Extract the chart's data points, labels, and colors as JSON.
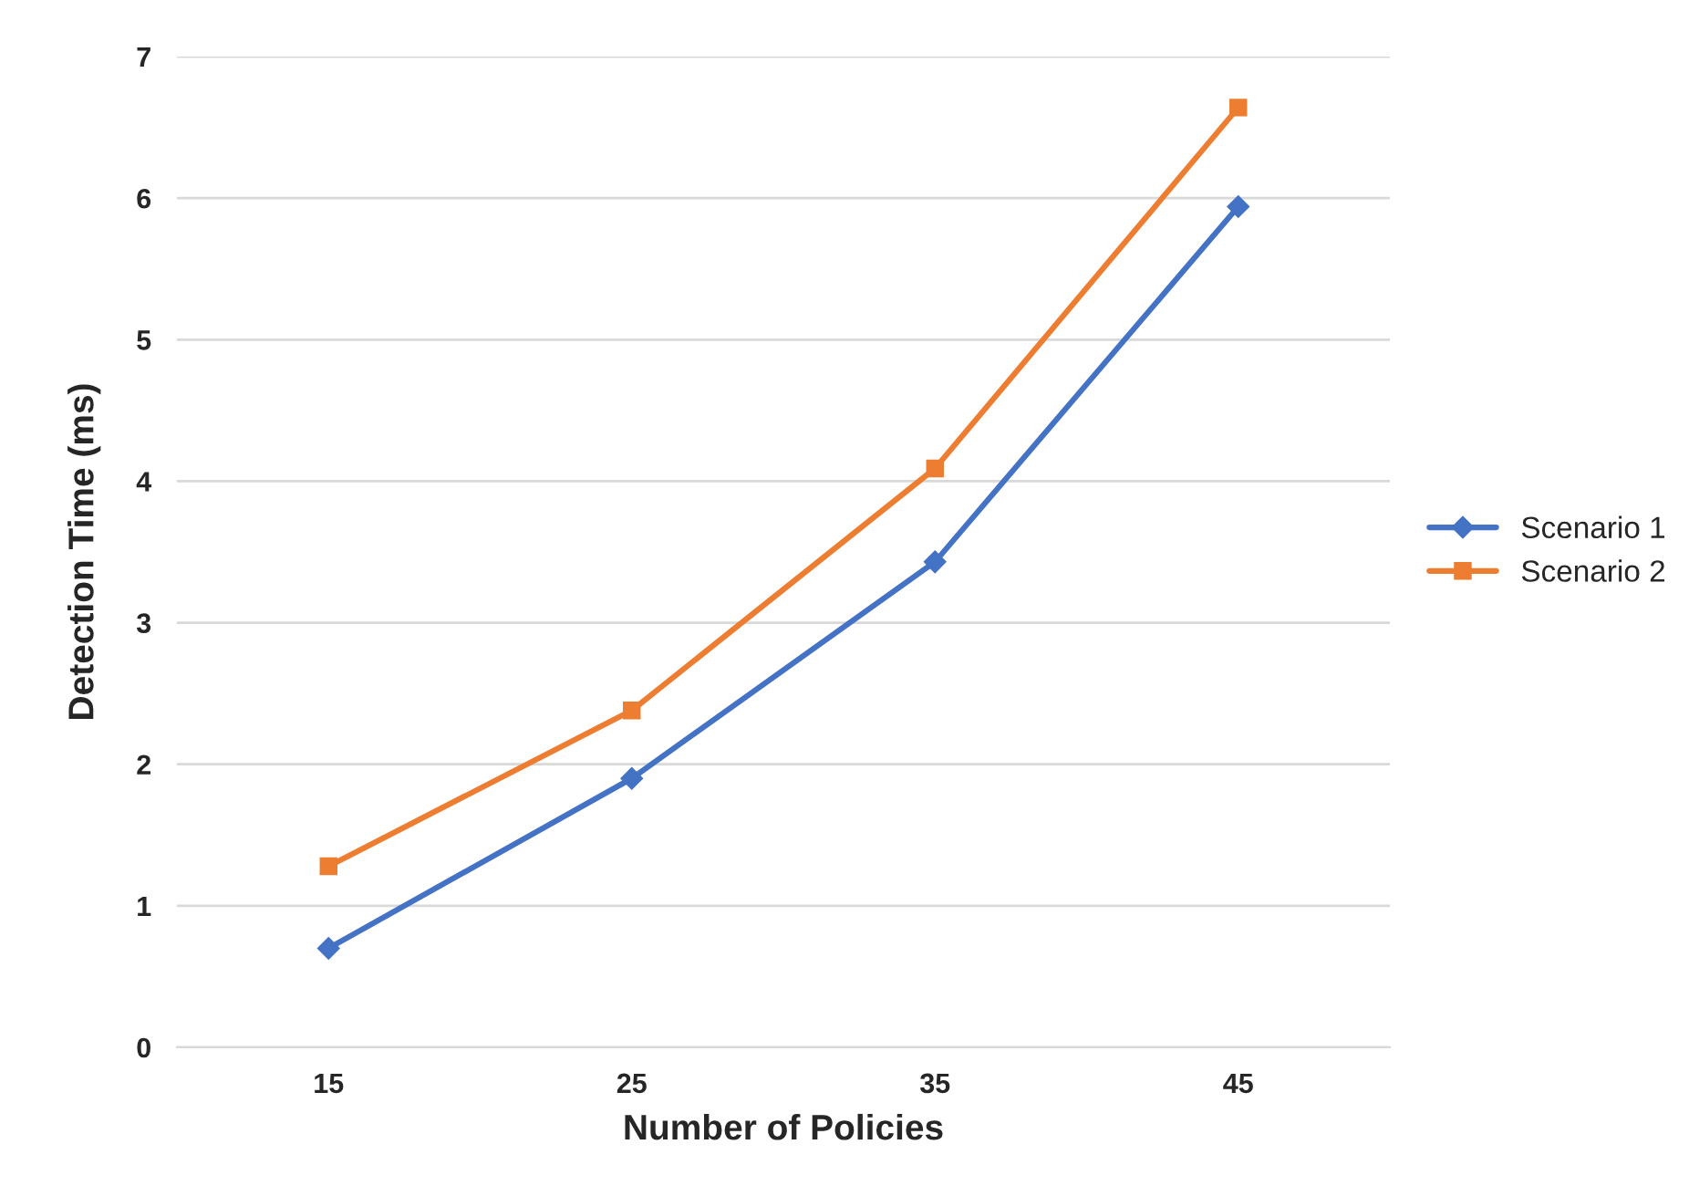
{
  "chart_data": {
    "type": "line",
    "xlabel": "Number of Policies",
    "ylabel": "Detection Time (ms)",
    "categories": [
      "15",
      "25",
      "35",
      "45"
    ],
    "series": [
      {
        "name": "Scenario 1",
        "color": "#4472c4",
        "marker": "diamond",
        "values": [
          0.7,
          1.9,
          3.43,
          5.94
        ]
      },
      {
        "name": "Scenario 2",
        "color": "#ed7d31",
        "marker": "square",
        "values": [
          1.28,
          2.38,
          4.09,
          6.64
        ]
      }
    ],
    "ylim": [
      0,
      7
    ],
    "yticks": [
      0,
      1,
      2,
      3,
      4,
      5,
      6,
      7
    ],
    "grid": "y",
    "legend": "right",
    "line_style": "solid"
  }
}
